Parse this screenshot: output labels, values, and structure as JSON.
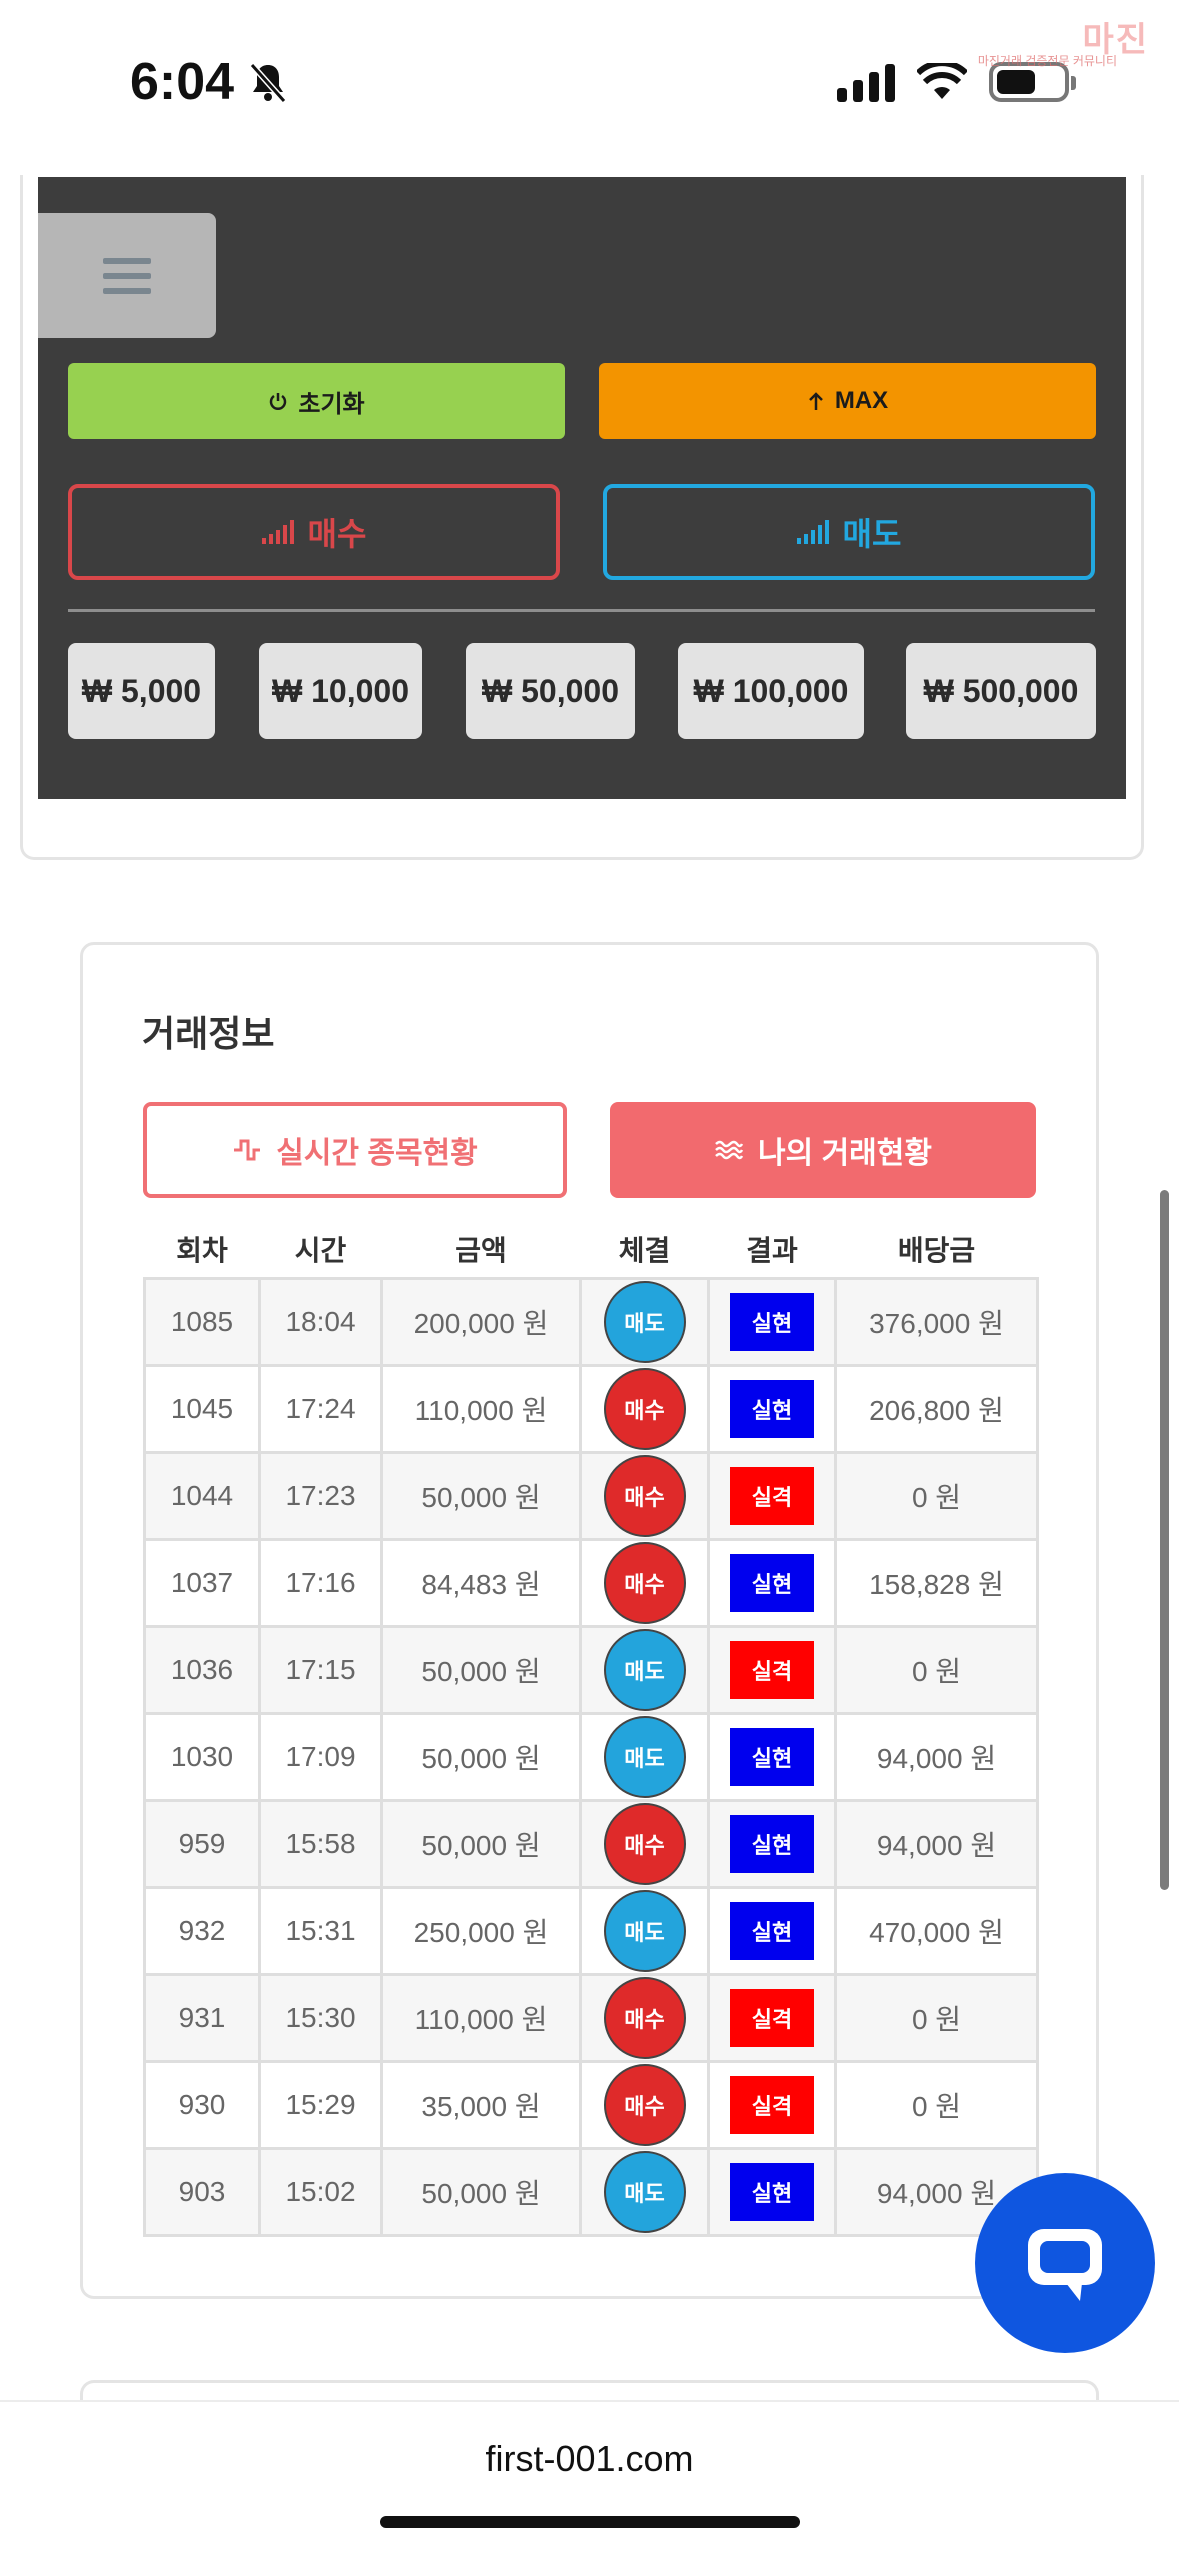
{
  "status_bar": {
    "time": "6:04",
    "watermark_title": "마진",
    "watermark_subtitle": "마진거래 검증전문 커뮤니티"
  },
  "controls": {
    "reset_label": "초기화",
    "max_label": "MAX",
    "buy_label": "매수",
    "sell_label": "매도",
    "amounts": [
      "₩ 5,000",
      "₩ 10,000",
      "₩ 50,000",
      "₩ 100,000",
      "₩ 500,000"
    ]
  },
  "colors": {
    "buy": "#df2a2a",
    "sell": "#23a4dc",
    "win": "#0000ee",
    "lose": "#ff0000",
    "accent": "#f26a6e",
    "reset": "#97d150",
    "max": "#f39400",
    "chat": "#0f56e0"
  },
  "trade_info": {
    "title": "거래정보",
    "tab_live": "실시간 종목현황",
    "tab_mine": "나의 거래현황",
    "columns": [
      "회차",
      "시간",
      "금액",
      "체결",
      "결과",
      "배당금"
    ],
    "rows": [
      {
        "round": "1085",
        "time": "18:04",
        "amount": "200,000 원",
        "side": "매도",
        "result": "실현",
        "payout": "376,000 원"
      },
      {
        "round": "1045",
        "time": "17:24",
        "amount": "110,000 원",
        "side": "매수",
        "result": "실현",
        "payout": "206,800 원"
      },
      {
        "round": "1044",
        "time": "17:23",
        "amount": "50,000 원",
        "side": "매수",
        "result": "실격",
        "payout": "0 원"
      },
      {
        "round": "1037",
        "time": "17:16",
        "amount": "84,483 원",
        "side": "매수",
        "result": "실현",
        "payout": "158,828 원"
      },
      {
        "round": "1036",
        "time": "17:15",
        "amount": "50,000 원",
        "side": "매도",
        "result": "실격",
        "payout": "0 원"
      },
      {
        "round": "1030",
        "time": "17:09",
        "amount": "50,000 원",
        "side": "매도",
        "result": "실현",
        "payout": "94,000 원"
      },
      {
        "round": "959",
        "time": "15:58",
        "amount": "50,000 원",
        "side": "매수",
        "result": "실현",
        "payout": "94,000 원"
      },
      {
        "round": "932",
        "time": "15:31",
        "amount": "250,000 원",
        "side": "매도",
        "result": "실현",
        "payout": "470,000 원"
      },
      {
        "round": "931",
        "time": "15:30",
        "amount": "110,000 원",
        "side": "매수",
        "result": "실격",
        "payout": "0 원"
      },
      {
        "round": "930",
        "time": "15:29",
        "amount": "35,000 원",
        "side": "매수",
        "result": "실격",
        "payout": "0 원"
      },
      {
        "round": "903",
        "time": "15:02",
        "amount": "50,000 원",
        "side": "매도",
        "result": "실현",
        "payout": "94,000 원"
      }
    ]
  },
  "browser": {
    "url": "first-001.com"
  },
  "icons": {
    "reset": "power-icon",
    "max": "arrow-up-icon",
    "buy": "signal-bars-icon",
    "sell": "signal-bars-icon",
    "menu": "hamburger-icon",
    "chat": "chat-bubble-icon"
  }
}
